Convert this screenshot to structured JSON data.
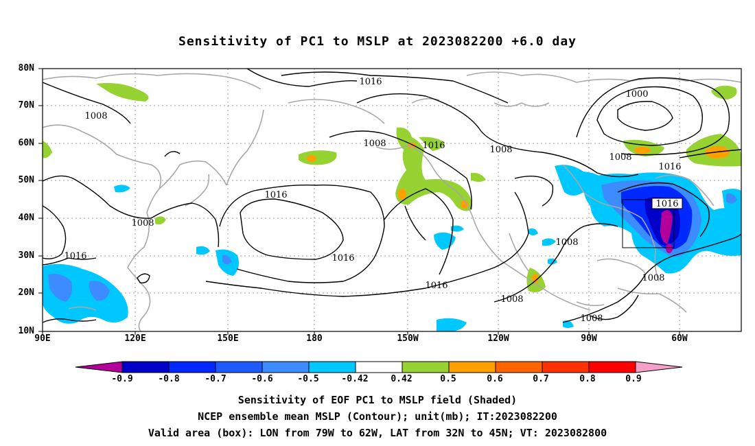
{
  "title": "Sensitivity of PC1 to MSLP at 2023082200 +6.0 day",
  "map": {
    "lat_labels": [
      "80N",
      "70N",
      "60N",
      "50N",
      "40N",
      "30N",
      "20N",
      "10N"
    ],
    "lon_labels": [
      "90E",
      "120E",
      "150E",
      "180",
      "150W",
      "120W",
      "90W",
      "60W"
    ],
    "extent": {
      "lon_min": "90E",
      "lon_max": "45W",
      "lat_min": "10N",
      "lat_max": "80N"
    },
    "gridlines": "dotted",
    "contour_labels": [
      "1016",
      "1008",
      "1008",
      "1008",
      "1016",
      "1016",
      "1008",
      "1000",
      "1008",
      "1016",
      "1008",
      "1016",
      "1008",
      "1016",
      "1016",
      "1008",
      "1008"
    ],
    "valid_box": {
      "lon_from": "79W",
      "lon_to": "62W",
      "lat_from": "32N",
      "lat_to": "45N"
    }
  },
  "colorbar": {
    "labels": [
      "-0.9",
      "-0.8",
      "-0.7",
      "-0.6",
      "-0.5",
      "-0.42",
      "0.42",
      "0.5",
      "0.6",
      "0.7",
      "0.8",
      "0.9"
    ],
    "colors": [
      "#b4009b",
      "#0000c8",
      "#0028ff",
      "#1e5aff",
      "#3c8cff",
      "#00c8ff",
      "#ffffff",
      "#96d232",
      "#ffa000",
      "#ff6400",
      "#ff3200",
      "#ff0000",
      "#f5a0c8"
    ]
  },
  "captions": [
    "Sensitivity of EOF PC1 to MSLP field (Shaded)",
    "NCEP ensemble mean MSLP (Contour); unit(mb); IT:2023082200",
    "Valid area (box): LON from 79W to 62W, LAT from 32N to 45N; VT: 2023082800"
  ]
}
